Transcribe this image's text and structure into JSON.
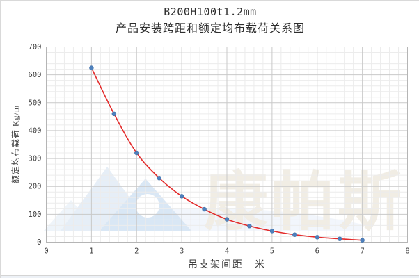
{
  "chart": {
    "title_line1": "B200H100t1.2mm",
    "title_line2": "产品安装跨距和额定均布载荷关系图",
    "x_axis_label": "吊支架间距　米",
    "y_axis_label": "额定均布载荷 Kg/m"
  },
  "chart_data": {
    "type": "line",
    "title": "B200H100t1.2mm 产品安装跨距和额定均布载荷关系图",
    "xlabel": "吊支架间距 米",
    "ylabel": "额定均布载荷 Kg/m",
    "x": [
      1,
      1.5,
      2,
      2.5,
      3,
      3.5,
      4,
      4.5,
      5,
      5.5,
      6,
      6.5,
      7
    ],
    "values": [
      625,
      460,
      320,
      230,
      165,
      118,
      82,
      58,
      40,
      27,
      18,
      12,
      7
    ],
    "xlim": [
      0,
      8
    ],
    "ylim": [
      0,
      700
    ],
    "x_major_ticks": [
      0,
      1,
      2,
      3,
      4,
      5,
      6,
      7,
      8
    ],
    "y_major_ticks": [
      0,
      100,
      200,
      300,
      400,
      500,
      600,
      700
    ],
    "x_minor_step": 0.2,
    "y_minor_step": 20,
    "grid": true,
    "legend": "none",
    "line_color": "#e32b2b",
    "marker_color": "#4e81bd",
    "marker_edge_color": "#3f6fa8",
    "major_grid_color": "#c9c9c9",
    "minor_grid_color": "#ececec",
    "frame_color": "#b5b5b5",
    "tick_label_color": "#3f3f3f"
  },
  "watermark": {
    "text": "康帕斯",
    "text_color": "#f1ede4",
    "logo_light_blue": "#e6eef7",
    "logo_mid_blue": "#d9e7f5",
    "logo_pale_blue": "#eef4fa",
    "swoosh_color": "#f0f5fb"
  }
}
